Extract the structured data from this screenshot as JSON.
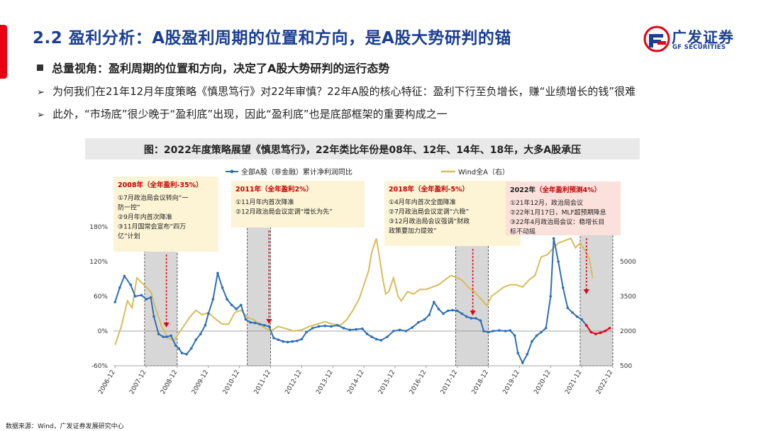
{
  "header": {
    "title": "2.2 盈利分析：A股盈利周期的位置和方向，是A股大势研判的锚",
    "logo_cn": "广发证券",
    "logo_en": "GF SECURITIES"
  },
  "bullets": {
    "main": "总量视角：盈利周期的位置和方向，决定了A股大势研判的运行态势",
    "point1": "为何我们在21年12月年度策略《慎思笃行》对22年审慎？22年A股的核心特征：盈利下行至负增长，赚“业绩增长的钱”很难",
    "point2": "此外，“市场底”很少晚于“盈利底”出现，因此“盈利底”也是底部框架的重要构成之一"
  },
  "figure_title": "图：2022年度策略展望《慎思笃行》，22年类比年份是08年、12年、14年、18年，大多A股承压",
  "source": "数据来源：Wind，广发证券发展研究中心",
  "colors": {
    "brand": "#1b3f93",
    "accent": "#e60012",
    "series_profit": "#2e6fb4",
    "series_wind": "#d8bd5a",
    "annotation_bg": "#fdf3d5",
    "annotation_bg_2022": "#fbe1dc",
    "shade": "#d7d7d7",
    "marker": "#e60012"
  },
  "chart_data": {
    "type": "line",
    "legend_position": "top",
    "x_ticks": [
      "2006-12",
      "2007-12",
      "2008-12",
      "2009-12",
      "2010-12",
      "2011-12",
      "2012-12",
      "2013-12",
      "2014-12",
      "2015-12",
      "2016-12",
      "2017-12",
      "2018-12",
      "2019-12",
      "2020-12",
      "2021-12",
      "2022-12"
    ],
    "x_range": [
      2006.9,
      2022.95
    ],
    "y_left": {
      "range": [
        -60,
        180
      ],
      "ticks": [
        "-60%",
        "0%",
        "60%",
        "120%",
        "180%"
      ]
    },
    "y_right": {
      "range": [
        500,
        6500
      ],
      "ticks": [
        "500",
        "2000",
        "3500",
        "5000"
      ]
    },
    "series": [
      {
        "name": "全部A股（非金融）累计净利润同比",
        "axis": "left",
        "marker": "dot",
        "x": [
          2006.95,
          2007.1,
          2007.25,
          2007.45,
          2007.6,
          2007.8,
          2007.95,
          2008.1,
          2008.2,
          2008.35,
          2008.5,
          2008.6,
          2008.75,
          2008.9,
          2009.0,
          2009.1,
          2009.25,
          2009.4,
          2009.55,
          2009.7,
          2009.85,
          2009.95,
          2010.1,
          2010.25,
          2010.4,
          2010.55,
          2010.7,
          2010.85,
          2011.0,
          2011.15,
          2011.3,
          2011.45,
          2011.6,
          2011.75,
          2011.9,
          2012.05,
          2012.2,
          2012.35,
          2012.5,
          2012.65,
          2012.8,
          2012.95,
          2013.1,
          2013.3,
          2013.5,
          2013.7,
          2013.9,
          2014.1,
          2014.3,
          2014.5,
          2014.7,
          2014.9,
          2015.05,
          2015.2,
          2015.35,
          2015.5,
          2015.7,
          2015.9,
          2016.1,
          2016.3,
          2016.5,
          2016.7,
          2016.9,
          2017.05,
          2017.2,
          2017.35,
          2017.5,
          2017.65,
          2017.8,
          2017.95,
          2018.1,
          2018.25,
          2018.4,
          2018.55,
          2018.7,
          2018.8,
          2018.95,
          2019.1,
          2019.3,
          2019.5,
          2019.65,
          2019.8,
          2019.9,
          2020.05,
          2020.2,
          2020.35,
          2020.5,
          2020.65,
          2020.8,
          2020.95,
          2021.05,
          2021.2,
          2021.35,
          2021.5,
          2021.65,
          2021.8,
          2021.95,
          2022.1,
          2022.25,
          2022.4,
          2022.55,
          2022.7,
          2022.85
        ],
        "y": [
          50,
          75,
          95,
          80,
          60,
          62,
          55,
          58,
          25,
          -5,
          -10,
          -10,
          -8,
          -25,
          -30,
          -38,
          -40,
          -30,
          -15,
          -5,
          10,
          30,
          55,
          100,
          75,
          55,
          45,
          38,
          45,
          20,
          15,
          14,
          12,
          10,
          8,
          -12,
          -15,
          -18,
          -19,
          -18,
          -17,
          -14,
          -2,
          5,
          8,
          9,
          8,
          10,
          5,
          2,
          3,
          4,
          -5,
          -10,
          -14,
          -16,
          -10,
          0,
          2,
          0,
          6,
          15,
          20,
          28,
          50,
          38,
          30,
          35,
          36,
          35,
          30,
          25,
          22,
          22,
          18,
          0,
          -2,
          0,
          1,
          0,
          1,
          -8,
          -38,
          -55,
          -40,
          -18,
          -8,
          -2,
          5,
          60,
          160,
          120,
          75,
          40,
          32,
          25,
          20,
          10,
          -2,
          -5,
          -3,
          0,
          5
        ]
      },
      {
        "name": "Wind全A（右）",
        "axis": "right",
        "marker": "none",
        "x": [
          2006.95,
          2007.15,
          2007.35,
          2007.5,
          2007.65,
          2007.8,
          2007.95,
          2008.1,
          2008.25,
          2008.45,
          2008.65,
          2008.85,
          2008.95,
          2009.15,
          2009.35,
          2009.55,
          2009.75,
          2009.95,
          2010.2,
          2010.4,
          2010.6,
          2010.8,
          2011.0,
          2011.2,
          2011.4,
          2011.6,
          2011.8,
          2011.95,
          2012.2,
          2012.45,
          2012.7,
          2012.95,
          2013.2,
          2013.45,
          2013.7,
          2013.95,
          2014.2,
          2014.4,
          2014.6,
          2014.8,
          2014.95,
          2015.1,
          2015.2,
          2015.35,
          2015.45,
          2015.55,
          2015.65,
          2015.75,
          2015.9,
          2016.05,
          2016.15,
          2016.35,
          2016.55,
          2016.75,
          2016.95,
          2017.15,
          2017.35,
          2017.55,
          2017.75,
          2017.95,
          2018.1,
          2018.3,
          2018.5,
          2018.7,
          2018.9,
          2019.05,
          2019.25,
          2019.45,
          2019.65,
          2019.85,
          2020.05,
          2020.25,
          2020.45,
          2020.65,
          2020.85,
          2021.05,
          2021.2,
          2021.4,
          2021.6,
          2021.75,
          2021.9,
          2022.05,
          2022.2,
          2022.3
        ],
        "y": [
          1400,
          2200,
          3300,
          3000,
          4300,
          4100,
          3900,
          3700,
          3000,
          2200,
          1700,
          1600,
          1800,
          2200,
          2600,
          2900,
          2700,
          2800,
          2500,
          2300,
          2300,
          2800,
          2900,
          2600,
          2500,
          2300,
          2100,
          2000,
          2200,
          2100,
          2000,
          2050,
          2200,
          2300,
          2400,
          2300,
          2250,
          2500,
          2900,
          3400,
          4000,
          4600,
          5400,
          6000,
          5200,
          4300,
          3600,
          3700,
          4300,
          3500,
          3300,
          3700,
          3600,
          3800,
          3800,
          3900,
          4000,
          4200,
          4400,
          4300,
          4200,
          3900,
          3700,
          3400,
          3100,
          3500,
          3700,
          3900,
          4000,
          4000,
          3900,
          4200,
          4400,
          5200,
          5300,
          5600,
          5800,
          5900,
          6000,
          5600,
          5800,
          5500,
          5100,
          4300
        ]
      }
    ],
    "shaded_periods": [
      [
        2007.9,
        2008.95
      ],
      [
        2011.2,
        2011.95
      ],
      [
        2017.9,
        2018.95
      ],
      [
        2021.9,
        2022.95
      ]
    ],
    "annotations": [
      {
        "year": "2008年",
        "detail": "（全年盈利-35%）",
        "lines": [
          "①7月政治局会议转向“一",
          "防一控”",
          "②9月年内首次降准",
          "③11月国常会宣布“四万",
          "亿”计划"
        ],
        "arrow_x": 2008.6,
        "style": "normal"
      },
      {
        "year": "2011年",
        "detail": "（全年盈利2%）",
        "lines": [
          "①11月年内首次降准",
          "②12月政治局会议定调“增长为先”"
        ],
        "arrow_x": 2011.9,
        "style": "normal"
      },
      {
        "year": "2018年",
        "detail": "（全年盈利-5%）",
        "lines": [
          "①4月年内首次全面降准",
          "②7月政治局会议定调“六稳”",
          "③12月政治局会议强调“财政",
          "政策要加力提效”"
        ],
        "arrow_x": 2018.45,
        "style": "normal"
      },
      {
        "year": "2022年",
        "detail": "（全年盈利预测4%）",
        "lines": [
          "①21年12月，政治局会议",
          "②22年1月17日，MLF超预期降息",
          "③22年4月政治局会议：稳增长目",
          "标不动摇"
        ],
        "arrow_x": 2022.1,
        "style": "highlight"
      }
    ]
  }
}
